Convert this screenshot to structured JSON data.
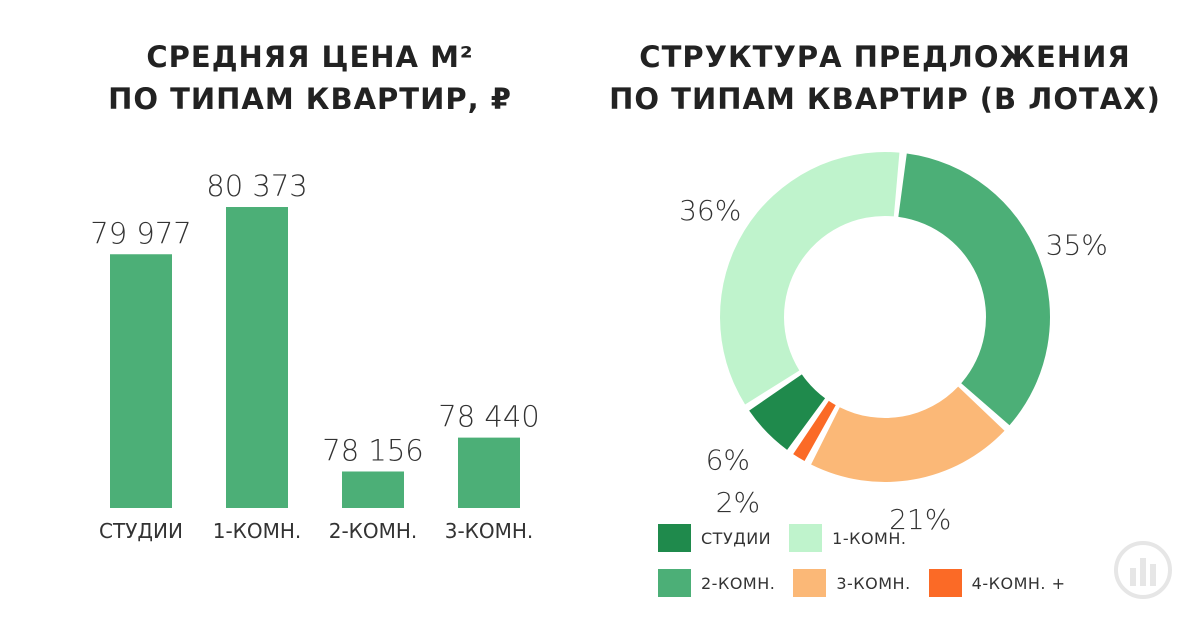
{
  "chart_data": [
    {
      "type": "bar",
      "title_lines": [
        "СРЕДНЯЯ ЦЕНА М²",
        "ПО ТИПАМ КВАРТИР, ₽"
      ],
      "categories": [
        "СТУДИИ",
        "1-КОМН.",
        "2-КОМН.",
        "3-КОМН."
      ],
      "values": [
        79977,
        80373,
        78156,
        78440
      ],
      "value_labels": [
        "79 977",
        "80 373",
        "78 156",
        "78 440"
      ],
      "ylim": [
        77850,
        80700
      ],
      "color": "#4caf77"
    },
    {
      "type": "pie",
      "donut": true,
      "title_lines": [
        "СТРУКТУРА ПРЕДЛОЖЕНИЯ",
        "ПО ТИПАМ КВАРТИР (В ЛОТАХ)"
      ],
      "slices": [
        {
          "name": "2-КОМН.",
          "value": 35,
          "label": "35%",
          "color": "#4caf77"
        },
        {
          "name": "3-КОМН.",
          "value": 21,
          "label": "21%",
          "color": "#fbb877"
        },
        {
          "name": "4-КОМН. +",
          "value": 2,
          "label": "2%",
          "color": "#fb6a26"
        },
        {
          "name": "СТУДИИ",
          "value": 6,
          "label": "6%",
          "color": "#1f8a4c"
        },
        {
          "name": "1-КОМН.",
          "value": 36,
          "label": "36%",
          "color": "#bff3cc"
        }
      ],
      "legend": {
        "rows": [
          [
            {
              "name": "СТУДИИ",
              "color": "#1f8a4c"
            },
            {
              "name": "1-КОМН.",
              "color": "#bff3cc"
            }
          ],
          [
            {
              "name": "2-КОМН.",
              "color": "#4caf77"
            },
            {
              "name": "3-КОМН.",
              "color": "#fbb877"
            },
            {
              "name": "4-КОМН. +",
              "color": "#fb6a26"
            }
          ]
        ],
        "position": "bottom"
      }
    }
  ],
  "logo": {
    "icon": "bar-chart-logo-icon",
    "color": "#e6e6e6"
  }
}
